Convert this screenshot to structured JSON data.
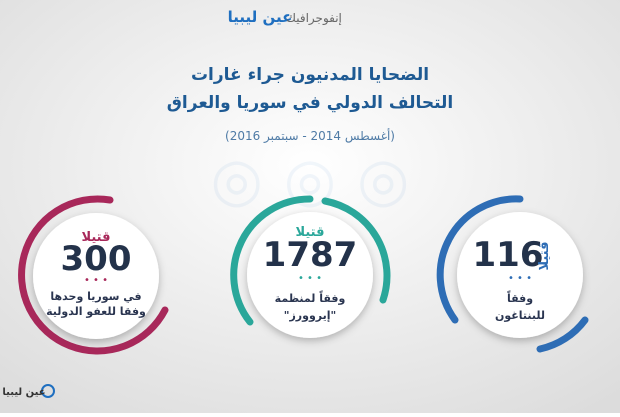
{
  "header": {
    "brand": "عين ليبيا",
    "label": "إنفوجرافيك"
  },
  "title": {
    "line1": "الضحايا المدنيون جراء غارات",
    "line2": "التحالف الدولي في سوريا والعراق",
    "period": "(أغسطس 2014 - سبتمبر 2016)"
  },
  "stats": [
    {
      "number": 300,
      "unit": "قتيلا",
      "note": [
        "في سوريا وحدها",
        "وفقا للعفو الدولية"
      ]
    },
    {
      "number": 1787,
      "unit": "قتيلا",
      "note": [
        "وفقاً لمنظمة",
        "\"إيروورز\""
      ]
    },
    {
      "number": 116,
      "unit": "قتيلا",
      "note": [
        "وفقاً",
        "للبنتاغون"
      ]
    }
  ],
  "footer": {
    "logo": "عين ليبيا"
  }
}
